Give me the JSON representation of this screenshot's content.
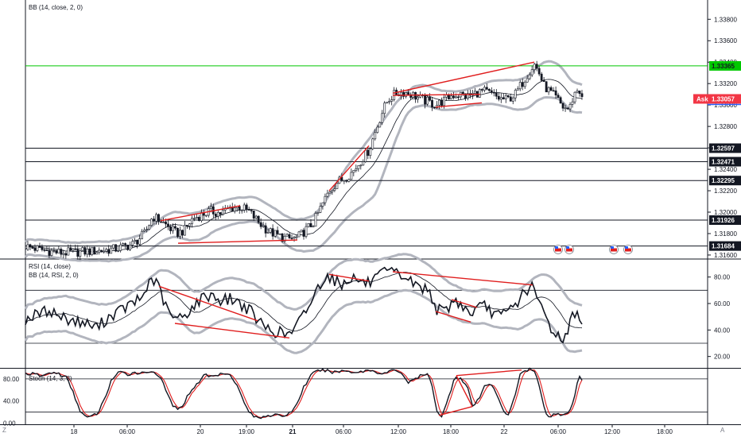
{
  "chart_data": [
    {
      "type": "line",
      "title": "BB (14, close, 2, 0)",
      "ylim": [
        1.3157,
        1.3398
      ],
      "ticks": [
        {
          "v": 1.338,
          "label": "1.33800"
        },
        {
          "v": 1.336,
          "label": "1.33600"
        },
        {
          "v": 1.334,
          "label": "1.33400"
        },
        {
          "v": 1.332,
          "label": "1.33200"
        },
        {
          "v": 1.33,
          "label": "1.33000"
        },
        {
          "v": 1.328,
          "label": "1.32800"
        },
        {
          "v": 1.326,
          "label": "1.32600"
        },
        {
          "v": 1.324,
          "label": "1.32400"
        },
        {
          "v": 1.322,
          "label": "1.32200"
        },
        {
          "v": 1.32,
          "label": "1.32000"
        },
        {
          "v": 1.318,
          "label": "1.31800"
        },
        {
          "v": 1.316,
          "label": "1.31600"
        }
      ],
      "price_path": [
        [
          0,
          1.3168
        ],
        [
          20,
          1.3165
        ],
        [
          45,
          1.3162
        ],
        [
          70,
          1.3163
        ],
        [
          95,
          1.3164
        ],
        [
          115,
          1.3166
        ],
        [
          135,
          1.317
        ],
        [
          150,
          1.318
        ],
        [
          160,
          1.3196
        ],
        [
          170,
          1.3192
        ],
        [
          180,
          1.3186
        ],
        [
          190,
          1.318
        ],
        [
          200,
          1.3183
        ],
        [
          210,
          1.3194
        ],
        [
          220,
          1.3197
        ],
        [
          232,
          1.3201
        ],
        [
          245,
          1.3199
        ],
        [
          258,
          1.3204
        ],
        [
          270,
          1.3205
        ],
        [
          282,
          1.32
        ],
        [
          294,
          1.319
        ],
        [
          306,
          1.3182
        ],
        [
          318,
          1.3178
        ],
        [
          330,
          1.3175
        ],
        [
          342,
          1.3176
        ],
        [
          352,
          1.3183
        ],
        [
          362,
          1.319
        ],
        [
          372,
          1.3205
        ],
        [
          382,
          1.322
        ],
        [
          392,
          1.3228
        ],
        [
          402,
          1.3232
        ],
        [
          412,
          1.3238
        ],
        [
          422,
          1.3248
        ],
        [
          432,
          1.3258
        ],
        [
          440,
          1.3275
        ],
        [
          448,
          1.3292
        ],
        [
          456,
          1.3305
        ],
        [
          466,
          1.3311
        ],
        [
          476,
          1.3312
        ],
        [
          486,
          1.331
        ],
        [
          496,
          1.3306
        ],
        [
          506,
          1.3303
        ],
        [
          516,
          1.33
        ],
        [
          526,
          1.3304
        ],
        [
          536,
          1.3309
        ],
        [
          546,
          1.331
        ],
        [
          556,
          1.3308
        ],
        [
          566,
          1.3311
        ],
        [
          576,
          1.3313
        ],
        [
          586,
          1.331
        ],
        [
          596,
          1.3306
        ],
        [
          606,
          1.3305
        ],
        [
          616,
          1.331
        ],
        [
          626,
          1.3322
        ],
        [
          634,
          1.3332
        ],
        [
          640,
          1.3338
        ],
        [
          646,
          1.333
        ],
        [
          652,
          1.3318
        ],
        [
          660,
          1.3312
        ],
        [
          668,
          1.3306
        ],
        [
          676,
          1.3298
        ],
        [
          684,
          1.3296
        ],
        [
          690,
          1.331
        ],
        [
          696,
          1.3316
        ],
        [
          700,
          1.3305
        ]
      ],
      "band_width": [
        [
          0,
          0.0007
        ],
        [
          150,
          0.001
        ],
        [
          220,
          0.0013
        ],
        [
          300,
          0.0011
        ],
        [
          360,
          0.0016
        ],
        [
          440,
          0.003
        ],
        [
          480,
          0.001
        ],
        [
          560,
          0.0008
        ],
        [
          620,
          0.0014
        ],
        [
          660,
          0.0017
        ],
        [
          700,
          0.0013
        ]
      ],
      "horizontal_levels": [
        {
          "v": 1.33365,
          "label": "1.33365",
          "color": "#00c800"
        },
        {
          "v": 1.32597,
          "label": "1.32597",
          "color": "#131722"
        },
        {
          "v": 1.32471,
          "label": "1.32471",
          "color": "#131722"
        },
        {
          "v": 1.32295,
          "label": "1.32295",
          "color": "#131722"
        },
        {
          "v": 1.31926,
          "label": "1.31926",
          "color": "#131722"
        },
        {
          "v": 1.31684,
          "label": "1.31684",
          "color": "#131722"
        }
      ],
      "ask": {
        "label": "Ask",
        "value": "1.33057",
        "v": 1.33057,
        "color": "#f23645"
      },
      "trendlines": [
        [
          [
            170,
            1.3192
          ],
          [
            270,
            1.3206
          ]
        ],
        [
          [
            192,
            1.3171
          ],
          [
            342,
            1.3174
          ]
        ],
        [
          [
            382,
            1.322
          ],
          [
            432,
            1.3262
          ]
        ],
        [
          [
            462,
            1.3311
          ],
          [
            640,
            1.334
          ]
        ],
        [
          [
            462,
            1.3309
          ],
          [
            572,
            1.331
          ]
        ],
        [
          [
            516,
            1.3298
          ],
          [
            574,
            1.3302
          ]
        ]
      ]
    },
    {
      "type": "line",
      "title": "RSI (14, close)",
      "subtitle": "BB (14, RSI, 2, 0)",
      "ylim": [
        12,
        93
      ],
      "ticks": [
        {
          "v": 80,
          "label": "80.00"
        },
        {
          "v": 60,
          "label": "60.00"
        },
        {
          "v": 40,
          "label": "40.00"
        },
        {
          "v": 20,
          "label": "20.00"
        }
      ],
      "levels": [
        70,
        30
      ],
      "rsi_path": [
        [
          0,
          48
        ],
        [
          15,
          52
        ],
        [
          30,
          55
        ],
        [
          45,
          50
        ],
        [
          60,
          47
        ],
        [
          75,
          45
        ],
        [
          90,
          42
        ],
        [
          105,
          50
        ],
        [
          120,
          55
        ],
        [
          135,
          60
        ],
        [
          148,
          65
        ],
        [
          158,
          80
        ],
        [
          168,
          72
        ],
        [
          178,
          55
        ],
        [
          188,
          48
        ],
        [
          198,
          50
        ],
        [
          210,
          57
        ],
        [
          222,
          64
        ],
        [
          234,
          67
        ],
        [
          246,
          62
        ],
        [
          258,
          64
        ],
        [
          270,
          60
        ],
        [
          282,
          55
        ],
        [
          292,
          47
        ],
        [
          302,
          42
        ],
        [
          312,
          39
        ],
        [
          322,
          38
        ],
        [
          330,
          36
        ],
        [
          338,
          40
        ],
        [
          348,
          50
        ],
        [
          358,
          60
        ],
        [
          368,
          72
        ],
        [
          378,
          82
        ],
        [
          388,
          78
        ],
        [
          398,
          74
        ],
        [
          408,
          80
        ],
        [
          418,
          78
        ],
        [
          428,
          75
        ],
        [
          438,
          77
        ],
        [
          448,
          82
        ],
        [
          458,
          84
        ],
        [
          468,
          82
        ],
        [
          478,
          80
        ],
        [
          488,
          75
        ],
        [
          498,
          72
        ],
        [
          508,
          70
        ],
        [
          518,
          55
        ],
        [
          528,
          54
        ],
        [
          538,
          62
        ],
        [
          548,
          60
        ],
        [
          558,
          52
        ],
        [
          568,
          56
        ],
        [
          578,
          58
        ],
        [
          588,
          53
        ],
        [
          598,
          50
        ],
        [
          608,
          55
        ],
        [
          618,
          60
        ],
        [
          628,
          70
        ],
        [
          638,
          72
        ],
        [
          648,
          58
        ],
        [
          656,
          48
        ],
        [
          664,
          38
        ],
        [
          672,
          35
        ],
        [
          680,
          34
        ],
        [
          686,
          48
        ],
        [
          692,
          55
        ],
        [
          700,
          47
        ]
      ],
      "bb_width": [
        [
          0,
          12
        ],
        [
          160,
          16
        ],
        [
          300,
          15
        ],
        [
          380,
          18
        ],
        [
          460,
          14
        ],
        [
          560,
          12
        ],
        [
          640,
          16
        ],
        [
          680,
          20
        ],
        [
          700,
          17
        ]
      ],
      "trendlines": [
        [
          [
            168,
            73
          ],
          [
            292,
            47
          ]
        ],
        [
          [
            188,
            45
          ],
          [
            332,
            34
          ]
        ],
        [
          [
            382,
            82
          ],
          [
            432,
            77
          ]
        ],
        [
          [
            462,
            84
          ],
          [
            638,
            74
          ]
        ],
        [
          [
            516,
            54
          ],
          [
            560,
            46
          ]
        ],
        [
          [
            536,
            63
          ],
          [
            568,
            57
          ]
        ]
      ]
    },
    {
      "type": "line",
      "title": "Stoch (14, 3, 3)",
      "ylim": [
        -2,
        97
      ],
      "ticks": [
        {
          "v": 80,
          "label": "80.00"
        },
        {
          "v": 40,
          "label": "40.00"
        },
        {
          "v": 0,
          "label": "0.00"
        }
      ],
      "levels": [
        80,
        20
      ],
      "k_path": [
        [
          0,
          90
        ],
        [
          12,
          88
        ],
        [
          22,
          85
        ],
        [
          32,
          92
        ],
        [
          42,
          89
        ],
        [
          52,
          82
        ],
        [
          60,
          55
        ],
        [
          68,
          25
        ],
        [
          76,
          10
        ],
        [
          84,
          12
        ],
        [
          92,
          20
        ],
        [
          100,
          45
        ],
        [
          108,
          78
        ],
        [
          118,
          92
        ],
        [
          128,
          88
        ],
        [
          138,
          92
        ],
        [
          148,
          90
        ],
        [
          158,
          95
        ],
        [
          168,
          86
        ],
        [
          176,
          62
        ],
        [
          184,
          35
        ],
        [
          192,
          22
        ],
        [
          200,
          38
        ],
        [
          208,
          60
        ],
        [
          216,
          70
        ],
        [
          224,
          88
        ],
        [
          234,
          84
        ],
        [
          244,
          88
        ],
        [
          254,
          92
        ],
        [
          262,
          80
        ],
        [
          270,
          55
        ],
        [
          278,
          28
        ],
        [
          286,
          12
        ],
        [
          294,
          10
        ],
        [
          302,
          14
        ],
        [
          312,
          15
        ],
        [
          322,
          12
        ],
        [
          332,
          18
        ],
        [
          340,
          30
        ],
        [
          350,
          65
        ],
        [
          360,
          88
        ],
        [
          370,
          96
        ],
        [
          380,
          94
        ],
        [
          390,
          92
        ],
        [
          400,
          95
        ],
        [
          410,
          93
        ],
        [
          420,
          92
        ],
        [
          430,
          96
        ],
        [
          440,
          94
        ],
        [
          450,
          88
        ],
        [
          458,
          94
        ],
        [
          466,
          96
        ],
        [
          474,
          90
        ],
        [
          482,
          72
        ],
        [
          490,
          80
        ],
        [
          498,
          86
        ],
        [
          506,
          88
        ],
        [
          512,
          65
        ],
        [
          518,
          20
        ],
        [
          524,
          12
        ],
        [
          532,
          45
        ],
        [
          540,
          85
        ],
        [
          548,
          80
        ],
        [
          556,
          65
        ],
        [
          562,
          30
        ],
        [
          570,
          42
        ],
        [
          578,
          68
        ],
        [
          586,
          72
        ],
        [
          594,
          50
        ],
        [
          600,
          22
        ],
        [
          608,
          14
        ],
        [
          616,
          52
        ],
        [
          622,
          88
        ],
        [
          628,
          96
        ],
        [
          636,
          98
        ],
        [
          642,
          90
        ],
        [
          648,
          55
        ],
        [
          654,
          20
        ],
        [
          660,
          12
        ],
        [
          668,
          18
        ],
        [
          676,
          14
        ],
        [
          684,
          20
        ],
        [
          690,
          45
        ],
        [
          696,
          88
        ],
        [
          702,
          74
        ]
      ],
      "trendlines": [
        [
          [
            542,
            86
          ],
          [
            624,
            96
          ]
        ],
        [
          [
            520,
            14
          ],
          [
            562,
            30
          ]
        ],
        [
          [
            542,
            86
          ],
          [
            562,
            30
          ]
        ]
      ]
    }
  ],
  "x_axis": {
    "labels": [
      {
        "x": 93,
        "text": "18",
        "bold": false
      },
      {
        "x": 160,
        "text": "06:00",
        "bold": false
      },
      {
        "x": 252,
        "text": "20",
        "bold": false
      },
      {
        "x": 310,
        "text": "19:00",
        "bold": false
      },
      {
        "x": 368,
        "text": "21",
        "bold": true
      },
      {
        "x": 432,
        "text": "06:00",
        "bold": false
      },
      {
        "x": 501,
        "text": "12:00",
        "bold": false
      },
      {
        "x": 567,
        "text": "18:00",
        "bold": false
      },
      {
        "x": 634,
        "text": "22",
        "bold": false
      },
      {
        "x": 702,
        "text": "06:00",
        "bold": false
      },
      {
        "x": 770,
        "text": "12:00",
        "bold": false
      },
      {
        "x": 836,
        "text": "18:00",
        "bold": false
      }
    ],
    "corner_left": "Z",
    "corner_right": "A"
  },
  "colors": {
    "candle": "#131722",
    "bb_band": "#b2b5be",
    "trend": "#e01e1e",
    "stoch_d": "#e01e1e",
    "green": "#00c800",
    "ask": "#f23645",
    "ask_dark": "#2962ff"
  }
}
